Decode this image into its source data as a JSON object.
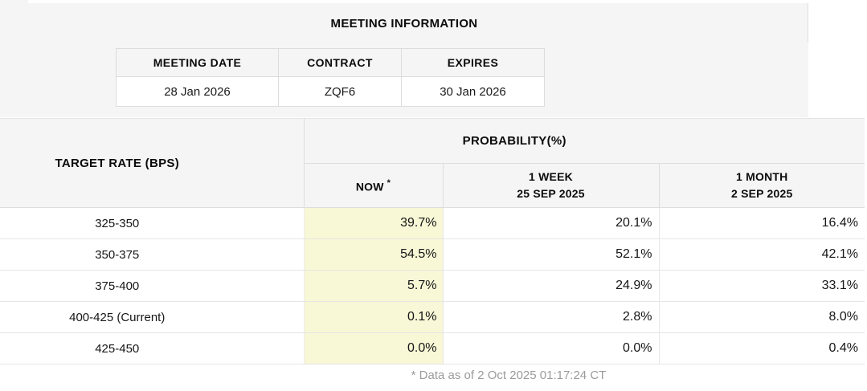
{
  "meeting_info": {
    "title": "MEETING INFORMATION",
    "columns": [
      "MEETING DATE",
      "CONTRACT",
      "EXPIRES"
    ],
    "row": [
      "28 Jan 2026",
      "ZQF6",
      "30 Jan 2026"
    ]
  },
  "probability_table": {
    "corner_header": "TARGET RATE (BPS)",
    "group_header": "PROBABILITY(%)",
    "col_headers": {
      "now": {
        "label": "NOW",
        "superscript": "*"
      },
      "week": {
        "line1": "1 WEEK",
        "line2": "25 SEP 2025"
      },
      "month": {
        "line1": "1 MONTH",
        "line2": "2 SEP 2025"
      }
    },
    "rows": [
      {
        "label": "325-350",
        "now": "39.7%",
        "week": "20.1%",
        "month": "16.4%"
      },
      {
        "label": "350-375",
        "now": "54.5%",
        "week": "52.1%",
        "month": "42.1%"
      },
      {
        "label": "375-400",
        "now": "5.7%",
        "week": "24.9%",
        "month": "33.1%"
      },
      {
        "label": "400-425 (Current)",
        "now": "0.1%",
        "week": "2.8%",
        "month": "8.0%"
      },
      {
        "label": "425-450",
        "now": "0.0%",
        "week": "0.0%",
        "month": "0.4%"
      }
    ]
  },
  "footnote": "* Data as of 2 Oct 2025 01:17:24 CT",
  "colors": {
    "now_column_highlight": "#f8f7d6",
    "panel_background": "#f5f5f5",
    "header_background": "#f5f5f5",
    "border": "#dddddd",
    "footnote_text": "#9b9b9b"
  }
}
